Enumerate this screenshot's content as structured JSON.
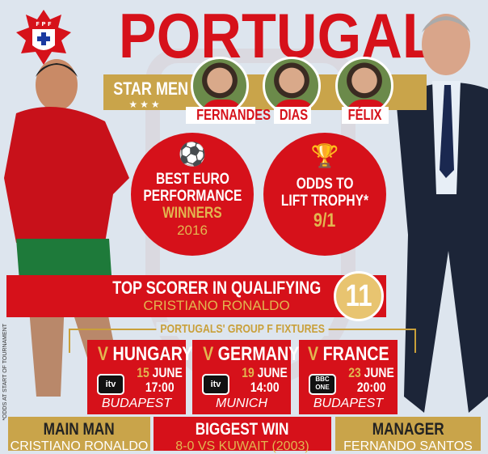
{
  "title": "PORTUGAL",
  "star_men": {
    "label": "STAR MEN",
    "stars": "★★★",
    "players": [
      "FERNANDES",
      "DIAS",
      "FÉLIX"
    ]
  },
  "best_euro": {
    "icon": "football-icon",
    "line1": "BEST EURO",
    "line2": "PERFORMANCE",
    "result": "WINNERS",
    "year": "2016"
  },
  "odds": {
    "icon": "trophy-icon",
    "line1": "ODDS TO",
    "line2": "LIFT TROPHY*",
    "value": "9/1"
  },
  "top_scorer": {
    "label": "TOP SCORER IN QUALIFYING",
    "name": "CRISTIANO RONALDO",
    "goals": "11"
  },
  "fixtures": {
    "heading": "PORTUGALS' GROUP F FIXTURES",
    "items": [
      {
        "v": "V",
        "opponent": "HUNGARY",
        "channel": "itv",
        "day": "15",
        "month": "JUNE",
        "time": "17:00",
        "venue": "BUDAPEST"
      },
      {
        "v": "V",
        "opponent": "GERMANY",
        "channel": "itv",
        "day": "19",
        "month": "JUNE",
        "time": "14:00",
        "venue": "MUNICH"
      },
      {
        "v": "V",
        "opponent": "FRANCE",
        "channel": "BBC ONE",
        "day": "23",
        "month": "JUNE",
        "time": "20:00",
        "venue": "BUDAPEST"
      }
    ]
  },
  "main_man": {
    "label": "MAIN MAN",
    "value": "CRISTIANO RONALDO"
  },
  "biggest_win": {
    "label": "BIGGEST WIN",
    "value": "8-0 VS KUWAIT (2003)"
  },
  "manager": {
    "label": "MANAGER",
    "value": "FERNANDO SANTOS"
  },
  "footnote": "*ODDS AT START OF TOURNAMENT",
  "colors": {
    "red": "#d6111a",
    "gold": "#c9a44a",
    "background": "#dde5ee"
  }
}
